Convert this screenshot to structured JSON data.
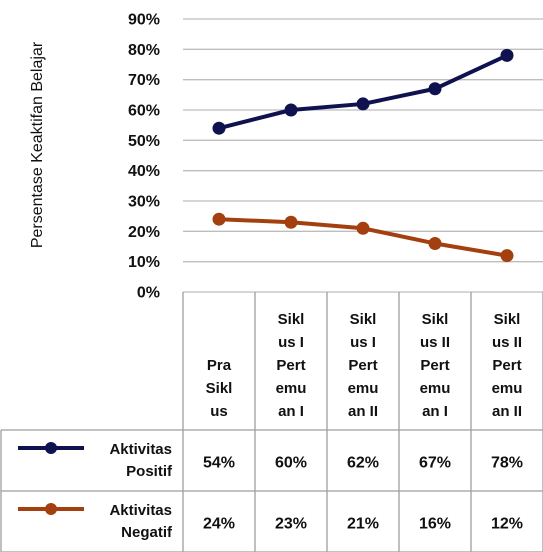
{
  "chart_data": {
    "type": "line",
    "ylabel": "Persentase Keaktifan Belajar",
    "ylim": [
      0,
      90
    ],
    "yticks": [
      "0%",
      "10%",
      "20%",
      "30%",
      "40%",
      "50%",
      "60%",
      "70%",
      "80%",
      "90%"
    ],
    "grid": true,
    "legend": "data-table",
    "categories": [
      [
        "Pra",
        "Sikl",
        "us"
      ],
      [
        "Sikl",
        "us I",
        "Pert",
        "emu",
        "an I"
      ],
      [
        "Sikl",
        "us I",
        "Pert",
        "emu",
        "an II"
      ],
      [
        "Sikl",
        "us II",
        "Pert",
        "emu",
        "an I"
      ],
      [
        "Sikl",
        "us II",
        "Pert",
        "emu",
        "an II"
      ]
    ],
    "series": [
      {
        "name": [
          "Aktivitas",
          "Positif"
        ],
        "values": [
          54,
          60,
          62,
          67,
          78
        ],
        "labels": [
          "54%",
          "60%",
          "62%",
          "67%",
          "78%"
        ],
        "color": "#10124f"
      },
      {
        "name": [
          "Aktivitas",
          "Negatif"
        ],
        "values": [
          24,
          23,
          21,
          16,
          12
        ],
        "labels": [
          "24%",
          "23%",
          "21%",
          "16%",
          "12%"
        ],
        "color": "#a4400f"
      }
    ]
  }
}
